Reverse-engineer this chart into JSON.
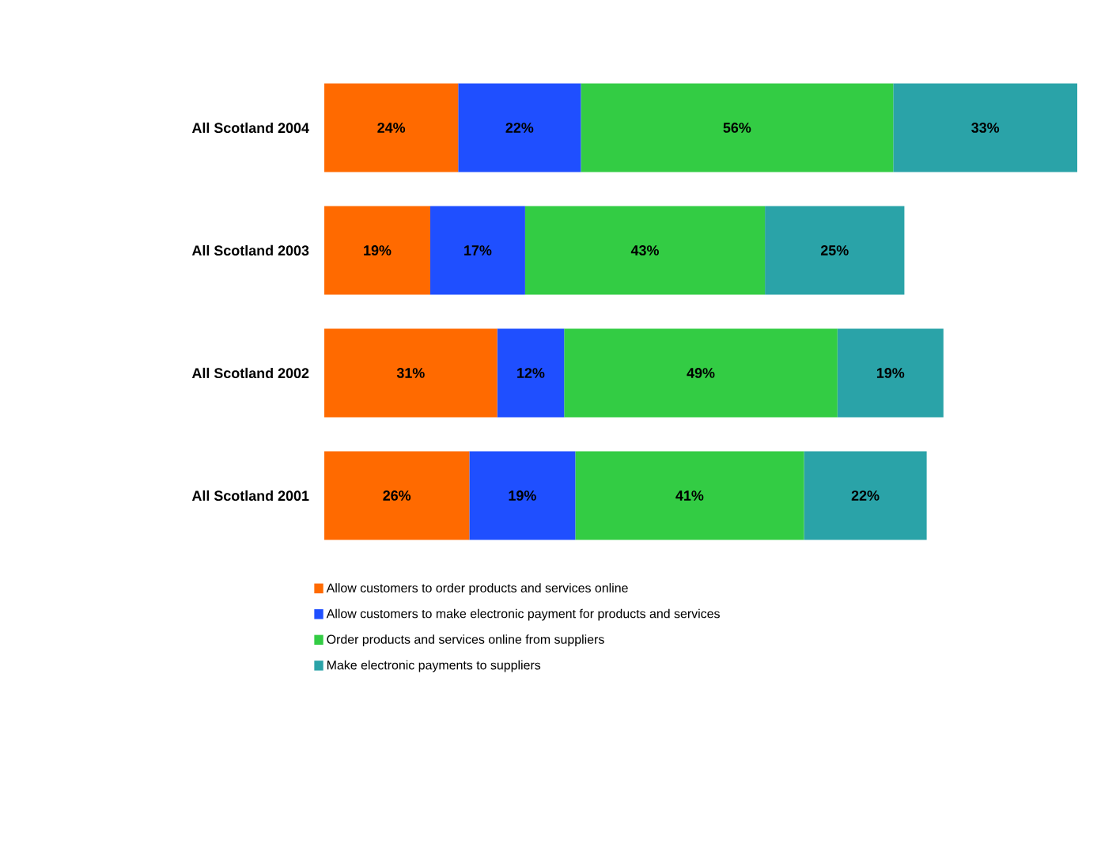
{
  "chart_data": {
    "type": "bar",
    "orientation": "horizontal",
    "stacked": true,
    "categories": [
      "All Scotland 2004",
      "All Scotland 2003",
      "All Scotland 2002",
      "All Scotland 2001"
    ],
    "tick_labels": "y",
    "legend": "bottom",
    "series": [
      {
        "name": "Allow customers to order products and services online",
        "color": "#ff6a00",
        "values": [
          24,
          19,
          31,
          26
        ],
        "value_labels": [
          "24%",
          "19%",
          "31%",
          "26%"
        ]
      },
      {
        "name": "Allow customers to make electronic payment for products and services",
        "color": "#1f4fff",
        "values": [
          22,
          17,
          12,
          19
        ],
        "value_labels": [
          "22%",
          "17%",
          "12%",
          "19%"
        ]
      },
      {
        "name": "Order products and services online from suppliers",
        "color": "#33cc44",
        "values": [
          56,
          43,
          49,
          41
        ],
        "value_labels": [
          "56%",
          "43%",
          "49%",
          "41%"
        ]
      },
      {
        "name": "Make electronic payments to suppliers",
        "color": "#2aa3a8",
        "values": [
          33,
          25,
          19,
          22
        ],
        "value_labels": [
          "33%",
          "25%",
          "19%",
          "22%"
        ]
      }
    ]
  }
}
